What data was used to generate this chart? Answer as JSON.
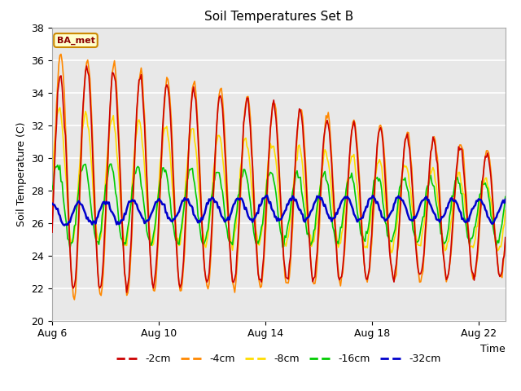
{
  "title": "Soil Temperatures Set B",
  "xlabel": "Time",
  "ylabel": "Soil Temperature (C)",
  "ylim": [
    20,
    38
  ],
  "xlim_days": [
    0,
    17
  ],
  "annotation": "BA_met",
  "fig_bg_color": "#ffffff",
  "plot_bg_color": "#e8e8e8",
  "series": [
    {
      "label": "-2cm",
      "color": "#cc0000",
      "lw": 1.2
    },
    {
      "label": "-4cm",
      "color": "#ff8800",
      "lw": 1.2
    },
    {
      "label": "-8cm",
      "color": "#ffdd00",
      "lw": 1.2
    },
    {
      "label": "-16cm",
      "color": "#00cc00",
      "lw": 1.2
    },
    {
      "label": "-32cm",
      "color": "#0000cc",
      "lw": 1.8
    }
  ],
  "tick_labels": [
    "Aug 6",
    "Aug 10",
    "Aug 14",
    "Aug 18",
    "Aug 22"
  ],
  "tick_positions": [
    0,
    4,
    8,
    12,
    16
  ],
  "yticks": [
    20,
    22,
    24,
    26,
    28,
    30,
    32,
    34,
    36,
    38
  ]
}
